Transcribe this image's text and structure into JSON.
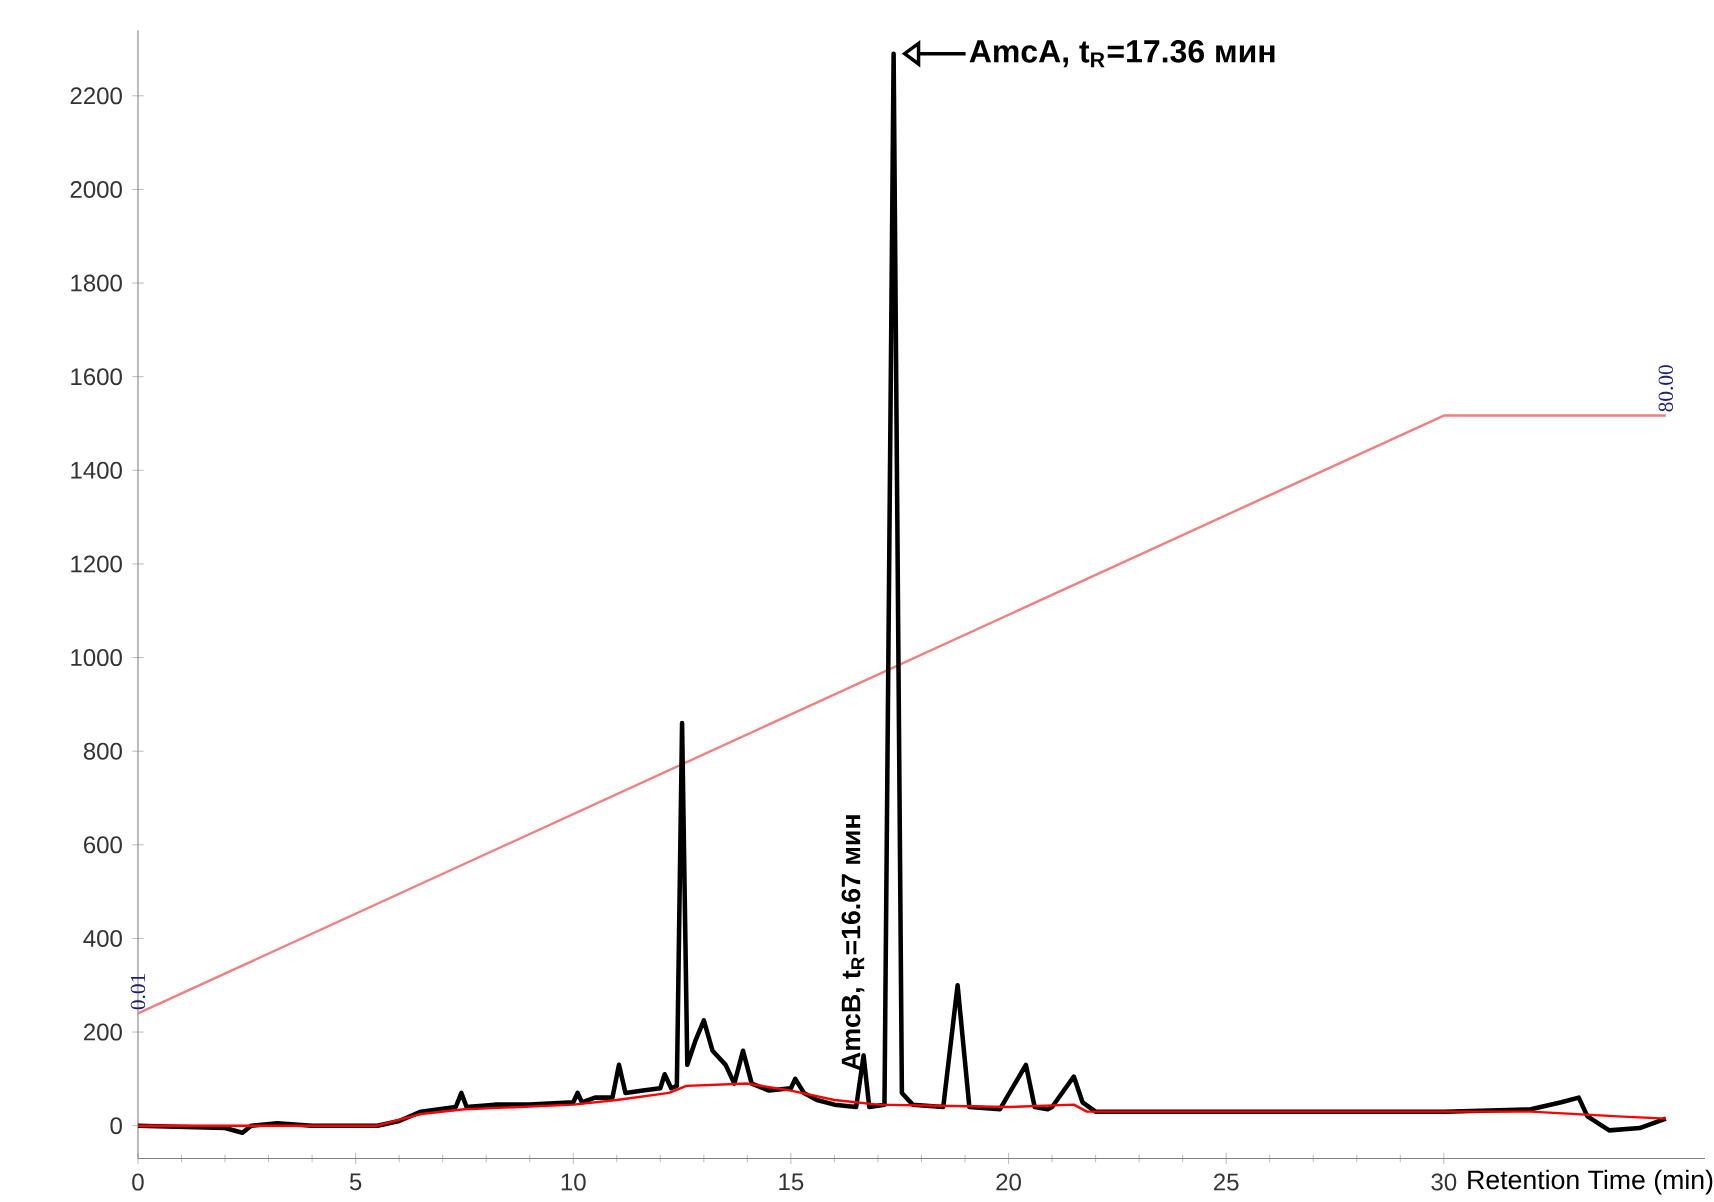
{
  "chart_data": {
    "type": "line",
    "xlabel": "Retention Time (min)",
    "xlim": [
      0,
      36
    ],
    "ylim": [
      -70,
      2340
    ],
    "xticks": [
      0,
      5,
      10,
      15,
      20,
      25,
      30
    ],
    "yticks": [
      0,
      200,
      400,
      600,
      800,
      1000,
      1200,
      1400,
      1600,
      1800,
      2000,
      2200
    ],
    "grid": false,
    "marker": "none",
    "line_style": "solid",
    "series": [
      {
        "color": "#f08080",
        "x": [
          0,
          30,
          35.1
        ],
        "values": [
          240,
          1517,
          1517
        ]
      },
      {
        "color": "#000000",
        "x": [
          0,
          2,
          2.4,
          2.6,
          3.2,
          4,
          5.5,
          6,
          6.5,
          7.3,
          7.43,
          7.55,
          8.2,
          9,
          10,
          10.1,
          10.2,
          10.5,
          10.9,
          11.05,
          11.2,
          11.6,
          12.0,
          12.1,
          12.25,
          12.38,
          12.5,
          12.62,
          12.8,
          13.0,
          13.2,
          13.5,
          13.7,
          13.9,
          14.1,
          14.5,
          15.0,
          15.1,
          15.3,
          15.6,
          16.0,
          16.5,
          16.67,
          16.8,
          17.15,
          17.36,
          17.55,
          17.8,
          18.5,
          18.83,
          19.1,
          19.8,
          20.4,
          20.6,
          20.9,
          21.0,
          21.5,
          21.7,
          22,
          25,
          30,
          32,
          32.7,
          33.1,
          33.3,
          33.8,
          34.5,
          35.1
        ],
        "values": [
          0,
          -5,
          -15,
          0,
          5,
          0,
          0,
          10,
          30,
          40,
          70,
          40,
          45,
          45,
          50,
          70,
          50,
          60,
          60,
          130,
          70,
          75,
          80,
          110,
          80,
          85,
          860,
          130,
          180,
          225,
          160,
          130,
          90,
          160,
          90,
          75,
          80,
          100,
          70,
          55,
          45,
          40,
          150,
          40,
          45,
          2290,
          70,
          45,
          40,
          300,
          40,
          35,
          130,
          40,
          35,
          40,
          105,
          50,
          30,
          30,
          30,
          35,
          50,
          60,
          20,
          -10,
          -5,
          15
        ]
      },
      {
        "color": "#ff0000",
        "x": [
          0,
          5.5,
          6.5,
          7.5,
          10,
          11,
          12.2,
          12.6,
          14,
          15,
          16,
          17,
          20,
          21.5,
          21.8,
          30,
          32,
          34,
          35.1
        ],
        "values": [
          0,
          0,
          25,
          35,
          45,
          55,
          70,
          85,
          90,
          75,
          55,
          45,
          40,
          45,
          30,
          30,
          30,
          20,
          15
        ]
      }
    ],
    "annotations": [
      {
        "text": "0.01",
        "x": 0,
        "y": 240
      },
      {
        "text": "80.00",
        "x": 35.1,
        "y": 1517
      },
      {
        "text": "AmcA, t$_{R}$=17.36 мин",
        "x": 17.36,
        "y": 2290
      },
      {
        "text": "AmcB, t$_{R}$=16.67 мин",
        "x": 16.67,
        "y": 150
      }
    ]
  }
}
